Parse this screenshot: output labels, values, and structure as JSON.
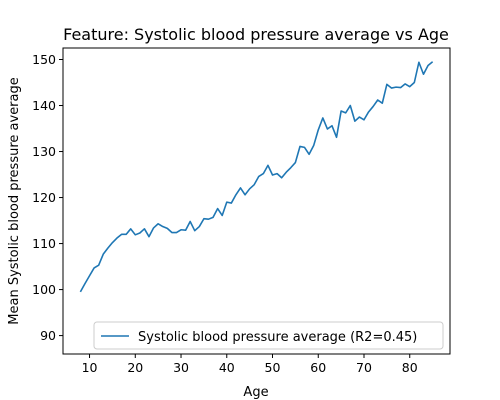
{
  "chart_data": {
    "type": "line",
    "title": "Feature: Systolic blood pressure average vs Age",
    "xlabel": "Age",
    "ylabel": "Mean Systolic blood pressure average",
    "xlim": [
      4.2,
      88.8
    ],
    "ylim": [
      86,
      152.5
    ],
    "xticks": [
      10,
      20,
      30,
      40,
      50,
      60,
      70,
      80
    ],
    "yticks": [
      90,
      100,
      110,
      120,
      130,
      140,
      150
    ],
    "grid": false,
    "legend_position": "lower-right",
    "series": [
      {
        "name": "Systolic blood pressure average (R2=0.45)",
        "color": "#1f77b4",
        "x": [
          8,
          9,
          10,
          11,
          12,
          13,
          14,
          15,
          16,
          17,
          18,
          19,
          20,
          21,
          22,
          23,
          24,
          25,
          26,
          27,
          28,
          29,
          30,
          31,
          32,
          33,
          34,
          35,
          36,
          37,
          38,
          39,
          40,
          41,
          42,
          43,
          44,
          45,
          46,
          47,
          48,
          49,
          50,
          51,
          52,
          53,
          54,
          55,
          56,
          57,
          58,
          59,
          60,
          61,
          62,
          63,
          64,
          65,
          66,
          67,
          68,
          69,
          70,
          71,
          72,
          73,
          74,
          75,
          76,
          77,
          78,
          79,
          80,
          81,
          82,
          83,
          84,
          85
        ],
        "y": [
          99.5,
          101.3,
          103.0,
          104.7,
          105.3,
          107.7,
          109.0,
          110.2,
          111.2,
          112.0,
          112.0,
          113.2,
          111.9,
          112.3,
          113.2,
          111.5,
          113.4,
          114.3,
          113.7,
          113.3,
          112.4,
          112.4,
          113.0,
          112.9,
          114.8,
          112.8,
          113.7,
          115.4,
          115.3,
          115.7,
          117.6,
          116.1,
          119.0,
          118.8,
          120.6,
          122.1,
          120.6,
          121.9,
          122.8,
          124.6,
          125.2,
          127.0,
          124.9,
          125.2,
          124.3,
          125.5,
          126.5,
          127.6,
          131.1,
          130.9,
          129.4,
          131.3,
          134.7,
          137.3,
          134.9,
          135.6,
          133.1,
          138.8,
          138.4,
          140.0,
          136.6,
          137.5,
          136.9,
          138.6,
          139.8,
          141.2,
          140.5,
          144.6,
          143.8,
          144.0,
          143.9,
          144.7,
          144.1,
          145.0,
          149.4,
          146.8,
          148.7,
          149.5
        ]
      }
    ]
  }
}
